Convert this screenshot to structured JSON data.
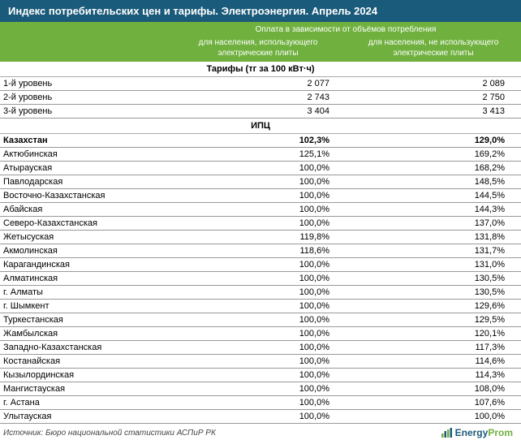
{
  "title": "Индекс потребительских цен и тарифы. Электроэнергия. Апрель 2024",
  "colHeaders": {
    "topLine": "Оплата в зависимости от объёмов потребления",
    "col2": "для населения, использующего электрические плиты",
    "col3": "для населения, не использующего электрические плиты"
  },
  "tariffSection": "Тарифы (тг за 100 кВт·ч)",
  "tariffRows": [
    {
      "label": "1-й уровень",
      "v2": "2 077",
      "v3": "2 089"
    },
    {
      "label": "2-й уровень",
      "v2": "2 743",
      "v3": "2 750"
    },
    {
      "label": "3-й уровень",
      "v2": "3 404",
      "v3": "3 413"
    }
  ],
  "ipcSection": "ИПЦ",
  "ipcTotal": {
    "label": "Казахстан",
    "v2": "102,3%",
    "v3": "129,0%"
  },
  "ipcRows": [
    {
      "label": "Актюбинская",
      "v2": "125,1%",
      "v3": "169,2%"
    },
    {
      "label": "Атырауская",
      "v2": "100,0%",
      "v3": "168,2%"
    },
    {
      "label": "Павлодарская",
      "v2": "100,0%",
      "v3": "148,5%"
    },
    {
      "label": "Восточно-Казахстанская",
      "v2": "100,0%",
      "v3": "144,5%"
    },
    {
      "label": "Абайская",
      "v2": "100,0%",
      "v3": "144,3%"
    },
    {
      "label": "Северо-Казахстанская",
      "v2": "100,0%",
      "v3": "137,0%"
    },
    {
      "label": "Жетысуская",
      "v2": "119,8%",
      "v3": "131,8%"
    },
    {
      "label": "Акмолинская",
      "v2": "118,6%",
      "v3": "131,7%"
    },
    {
      "label": "Карагандинская",
      "v2": "100,0%",
      "v3": "131,0%"
    },
    {
      "label": "Алматинская",
      "v2": "100,0%",
      "v3": "130,5%"
    },
    {
      "label": "г. Алматы",
      "v2": "100,0%",
      "v3": "130,5%"
    },
    {
      "label": "г. Шымкент",
      "v2": "100,0%",
      "v3": "129,6%"
    },
    {
      "label": "Туркестанская",
      "v2": "100,0%",
      "v3": "129,5%"
    },
    {
      "label": "Жамбылская",
      "v2": "100,0%",
      "v3": "120,1%"
    },
    {
      "label": "Западно-Казахстанская",
      "v2": "100,0%",
      "v3": "117,3%"
    },
    {
      "label": "Костанайская",
      "v2": "100,0%",
      "v3": "114,6%"
    },
    {
      "label": "Кызылординская",
      "v2": "100,0%",
      "v3": "114,3%"
    },
    {
      "label": "Мангистауская",
      "v2": "100,0%",
      "v3": "108,0%"
    },
    {
      "label": "г. Астана",
      "v2": "100,0%",
      "v3": "107,6%"
    },
    {
      "label": "Улытауская",
      "v2": "100,0%",
      "v3": "100,0%"
    }
  ],
  "source": "Источник: Бюро национальной статистики АСПиР РК",
  "logo": {
    "part1": "Energy",
    "part2": "Prom"
  },
  "colors": {
    "headerBg": "#1a5a7a",
    "subheaderBg": "#6fb03e",
    "border": "#999"
  }
}
